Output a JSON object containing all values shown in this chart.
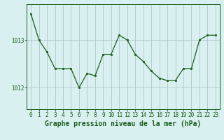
{
  "x": [
    0,
    1,
    2,
    3,
    4,
    5,
    6,
    7,
    8,
    9,
    10,
    11,
    12,
    13,
    14,
    15,
    16,
    17,
    18,
    19,
    20,
    21,
    22,
    23
  ],
  "y": [
    1013.55,
    1013.0,
    1012.75,
    1012.4,
    1012.4,
    1012.4,
    1012.0,
    1012.3,
    1012.25,
    1012.7,
    1012.7,
    1013.1,
    1013.0,
    1012.7,
    1012.55,
    1012.35,
    1012.2,
    1012.15,
    1012.15,
    1012.4,
    1012.4,
    1013.0,
    1013.1,
    1013.1
  ],
  "line_color": "#1a5c1a",
  "marker": "s",
  "marker_size": 2,
  "bg_color": "#d8f0f0",
  "grid_color": "#b0c8c8",
  "axis_color": "#1a5c1a",
  "xlabel": "Graphe pression niveau de la mer (hPa)",
  "xlabel_fontsize": 7,
  "ytick_labels": [
    "1012",
    "1013"
  ],
  "ylim": [
    1011.55,
    1013.75
  ],
  "xlim": [
    -0.5,
    23.5
  ],
  "xtick_labels": [
    "0",
    "1",
    "2",
    "3",
    "4",
    "5",
    "6",
    "7",
    "8",
    "9",
    "10",
    "11",
    "12",
    "13",
    "14",
    "15",
    "16",
    "17",
    "18",
    "19",
    "20",
    "21",
    "22",
    "23"
  ],
  "tick_fontsize": 5.5
}
